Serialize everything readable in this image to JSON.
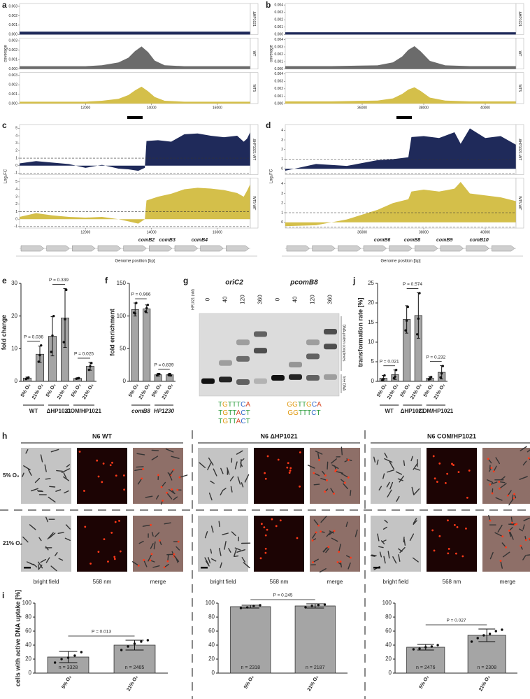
{
  "panel_labels": [
    "a",
    "b",
    "c",
    "d",
    "e",
    "f",
    "g",
    "h",
    "i",
    "j"
  ],
  "chart_data": [
    {
      "type": "area",
      "ylabel": "coverage",
      "x": [
        10000,
        11000,
        12000,
        12500,
        13000,
        13300,
        13500,
        13700,
        13900,
        14100,
        14400,
        15000,
        16000,
        17000
      ],
      "series": [
        {
          "name": "ΔHP1021",
          "color": "#1f2a5a",
          "values": [
            0.0003,
            0.0003,
            0.0003,
            0.0003,
            0.0003,
            0.0003,
            0.0003,
            0.0003,
            0.0003,
            0.0003,
            0.0003,
            0.0003,
            0.0003,
            0.0003
          ]
        },
        {
          "name": "WT",
          "color": "#6b6b6b",
          "values": [
            0.0003,
            0.0003,
            0.0003,
            0.0004,
            0.0007,
            0.0012,
            0.0019,
            0.0024,
            0.0018,
            0.0009,
            0.0004,
            0.0003,
            0.0003,
            0.0003
          ]
        },
        {
          "name": "WT5",
          "color": "#d4bf4a",
          "values": [
            0.0002,
            0.0002,
            0.0002,
            0.0003,
            0.0005,
            0.0009,
            0.0014,
            0.0018,
            0.0013,
            0.0007,
            0.0003,
            0.0002,
            0.0002,
            0.0002
          ]
        }
      ],
      "xlim": [
        10000,
        17000
      ],
      "xticks": [
        12000,
        14000,
        16000
      ],
      "ylim": [
        0,
        0.0033
      ],
      "yticks": [
        {
          "value": 0,
          "label": "0.000"
        },
        {
          "value": 0.001,
          "label": "0.001"
        },
        {
          "value": 0.002,
          "label": "0.002"
        },
        {
          "value": 0.003,
          "label": "0.003"
        }
      ]
    },
    {
      "type": "area",
      "ylabel": "coverage",
      "x": [
        33500,
        35000,
        36500,
        37000,
        37300,
        37500,
        37700,
        37900,
        38200,
        38700,
        39500,
        40500,
        41000
      ],
      "series": [
        {
          "name": "ΔHP1021",
          "color": "#1f2a5a",
          "values": [
            0.0003,
            0.0003,
            0.0003,
            0.0003,
            0.0003,
            0.0003,
            0.0003,
            0.0003,
            0.0003,
            0.0003,
            0.0003,
            0.0003,
            0.0003
          ]
        },
        {
          "name": "WT",
          "color": "#6b6b6b",
          "values": [
            0.0004,
            0.0004,
            0.0005,
            0.0009,
            0.0017,
            0.0026,
            0.0031,
            0.0024,
            0.0011,
            0.0005,
            0.0004,
            0.0004,
            0.0004
          ]
        },
        {
          "name": "WT5",
          "color": "#d4bf4a",
          "values": [
            0.0003,
            0.0003,
            0.0004,
            0.0007,
            0.0013,
            0.0019,
            0.0022,
            0.0017,
            0.0008,
            0.0004,
            0.0003,
            0.0003,
            0.0003
          ]
        }
      ],
      "xlim": [
        33500,
        41000
      ],
      "xticks": [
        36000,
        38000,
        40000
      ],
      "ylim": [
        0,
        0.0042
      ],
      "yticks": [
        {
          "value": 0,
          "label": "0.000"
        },
        {
          "value": 0.001,
          "label": "0.001"
        },
        {
          "value": 0.002,
          "label": "0.002"
        },
        {
          "value": 0.003,
          "label": "0.003"
        },
        {
          "value": 0.004,
          "label": "0.004"
        }
      ]
    },
    {
      "type": "area",
      "ylabel": "Log₂FC",
      "xlabel": "Genome position [bp]",
      "x": [
        10000,
        10500,
        11000,
        11500,
        12000,
        12500,
        13000,
        13300,
        13600,
        13800,
        13850,
        14200,
        14600,
        15000,
        15400,
        15800,
        16200,
        16600,
        16800,
        16900,
        17000
      ],
      "series": [
        {
          "name": "ΔHP1021-WT",
          "color": "#1f2a5a",
          "values": [
            0.3,
            0.6,
            0.4,
            0.2,
            -0.3,
            0.1,
            -0.4,
            -0.5,
            -0.7,
            -0.3,
            3.3,
            3.4,
            3.2,
            4.2,
            4.3,
            4.0,
            3.8,
            4.0,
            3.2,
            3.6,
            4.5
          ]
        },
        {
          "name": "WT5-WT",
          "color": "#d4bf4a",
          "values": [
            0.3,
            0.8,
            0.5,
            0.3,
            0.2,
            0.3,
            0.0,
            -0.3,
            -0.6,
            0.0,
            2.5,
            3.0,
            3.4,
            4.0,
            4.2,
            4.1,
            3.9,
            3.5,
            3.0,
            3.8,
            4.7
          ]
        }
      ],
      "xlim": [
        10000,
        17000
      ],
      "xticks": [
        12000,
        14000,
        16000
      ],
      "ylim": [
        -1.2,
        5.5
      ],
      "yticks": [
        -1,
        0,
        1,
        2,
        3,
        4,
        5
      ],
      "ref_lines": [
        1,
        -1
      ],
      "genes": [
        "comB2",
        "comB3",
        "comB4"
      ]
    },
    {
      "type": "area",
      "ylabel": "Log₂FC",
      "xlabel": "Genome position [bp]",
      "x": [
        33500,
        34500,
        35500,
        36000,
        36500,
        37000,
        37500,
        37600,
        38000,
        38500,
        39000,
        39200,
        39500,
        40000,
        40500,
        41000
      ],
      "series": [
        {
          "name": "ΔHP1021-WT",
          "color": "#1f2a5a",
          "values": [
            -0.2,
            0.5,
            0.3,
            0.6,
            0.9,
            1.0,
            1.2,
            3.3,
            3.4,
            3.2,
            3.8,
            2.6,
            4.2,
            3.2,
            3.4,
            2.5
          ]
        },
        {
          "name": "WT5-WT",
          "color": "#d4bf4a",
          "values": [
            -0.4,
            -0.3,
            0.3,
            0.8,
            1.3,
            2.0,
            2.4,
            3.2,
            3.4,
            3.2,
            3.5,
            4.2,
            3.0,
            2.8,
            2.6,
            2.2
          ]
        }
      ],
      "xlim": [
        33500,
        41000
      ],
      "xticks": [
        36000,
        38000,
        40000
      ],
      "ylim": [
        -0.6,
        4.6
      ],
      "yticks": [
        0,
        1,
        2,
        3,
        4
      ],
      "ref_lines": [
        1,
        -0.5
      ],
      "genes": [
        "comB6",
        "comB8",
        "comB9",
        "comB10"
      ]
    },
    {
      "type": "bar",
      "ylabel": "fold change",
      "color": "#a5a5a5",
      "categories": [
        "5% O₂",
        "21% O₂",
        "5% O₂",
        "21% O₂",
        "5% O₂",
        "21% O₂"
      ],
      "groups": [
        "WT",
        "ΔHP1021",
        "COM/HP1021"
      ],
      "values": [
        1,
        8.3,
        13.8,
        19.4,
        0.9,
        4.6
      ],
      "errors": [
        0.3,
        2.5,
        6,
        9,
        0.2,
        1.2
      ],
      "points": [
        [
          0.7,
          1,
          1.2
        ],
        [
          6,
          8,
          11
        ],
        [
          9,
          14,
          20
        ],
        [
          12,
          19,
          28
        ],
        [
          0.8,
          0.9,
          1
        ],
        [
          3.5,
          4.6,
          5.6
        ]
      ],
      "annotations": [
        "P = 0.036",
        "P = 0.339",
        "P = 0.025"
      ],
      "ylim": [
        0,
        30
      ],
      "yticks": [
        0,
        10,
        20,
        30
      ]
    },
    {
      "type": "bar",
      "ylabel": "fold enrichment",
      "color": "#a5a5a5",
      "categories": [
        "5% O₂",
        "21% O₂",
        "5% O₂",
        "21% O₂"
      ],
      "groups": [
        "comB8",
        "HP1230"
      ],
      "values": [
        110,
        111,
        10,
        10
      ],
      "errors": [
        10,
        6,
        2,
        2
      ],
      "points": [
        [
          105,
          104,
          120
        ],
        [
          107,
          112,
          117
        ],
        [
          9,
          11,
          11
        ],
        [
          10,
          11,
          9
        ]
      ],
      "annotations": [
        "P = 0.966",
        "P = 0.839"
      ],
      "ylim": [
        0,
        150
      ],
      "yticks": [
        0,
        50,
        100,
        150
      ]
    },
    {
      "type": "bar",
      "ylabel": "transformation rate [%]",
      "color": "#a5a5a5",
      "categories": [
        "5% O₂",
        "21% O₂",
        "5% O₂",
        "21% O₂",
        "5% O₂",
        "21% O₂"
      ],
      "groups": [
        "WT",
        "ΔHP1021",
        "COM/HP1021"
      ],
      "values": [
        0.8,
        1.7,
        15.8,
        16.8,
        0.8,
        2.3
      ],
      "errors": [
        0.7,
        1.2,
        3.5,
        5.8,
        0.4,
        1.7
      ],
      "points": [
        [
          0.3,
          0.6,
          1.5
        ],
        [
          0.8,
          1.2,
          2.9
        ],
        [
          13,
          15.5,
          19
        ],
        [
          12,
          16,
          22.5
        ],
        [
          0.5,
          0.8,
          1.1
        ],
        [
          1,
          2,
          3.9
        ]
      ],
      "annotations": [
        "P = 0.021",
        "P = 0.574",
        "P = 0.232"
      ],
      "ylim": [
        0,
        25
      ],
      "yticks": [
        0,
        5,
        10,
        15,
        20,
        25
      ]
    },
    {
      "type": "bar",
      "ylabel": "cells with active DNA uptake [%]",
      "color": "#a5a5a5",
      "categories": [
        "5% O₂",
        "21% O₂"
      ],
      "values": [
        23,
        40
      ],
      "errors": [
        8,
        7
      ],
      "points": [
        [
          15,
          20,
          22,
          25,
          30
        ],
        [
          33,
          38,
          42,
          45,
          47
        ]
      ],
      "n_labels": [
        "n = 3328",
        "n = 2465"
      ],
      "annotations": [
        "P = 0.013"
      ],
      "ylim": [
        0,
        100
      ],
      "yticks": [
        0,
        20,
        40,
        60,
        80,
        100
      ]
    },
    {
      "type": "bar",
      "color": "#a5a5a5",
      "categories": [
        "5% O₂",
        "21% O₂"
      ],
      "values": [
        95,
        96
      ],
      "errors": [
        2,
        3
      ],
      "points": [
        [
          93,
          94,
          96,
          97
        ],
        [
          94,
          96,
          97,
          98
        ]
      ],
      "n_labels": [
        "n = 2318",
        "n = 2187"
      ],
      "annotations": [
        "P = 0.245"
      ],
      "ylim": [
        0,
        100
      ],
      "yticks": [
        0,
        20,
        40,
        60,
        80,
        100
      ]
    },
    {
      "type": "bar",
      "color": "#a5a5a5",
      "categories": [
        "5% O₂",
        "21% O₂"
      ],
      "values": [
        37,
        54
      ],
      "errors": [
        4,
        9
      ],
      "points": [
        [
          34,
          35,
          37,
          38,
          40
        ],
        [
          45,
          50,
          54,
          56,
          60,
          62
        ]
      ],
      "n_labels": [
        "n = 2476",
        "n = 2308"
      ],
      "annotations": [
        "P = 0.027"
      ],
      "ylim": [
        0,
        100
      ],
      "yticks": [
        0,
        20,
        40,
        60,
        80,
        100
      ]
    }
  ],
  "gel": {
    "targets": [
      "oriC2",
      "pcomB8"
    ],
    "concentration_label": "HP1021 (nM)",
    "lanes": [
      [
        "0",
        "40",
        "120",
        "360"
      ],
      [
        "0",
        "40",
        "120",
        "360"
      ]
    ],
    "band_labels": [
      "DNA-protein complexes",
      "free DNA"
    ],
    "motifs": [
      [
        "TGTTTCA",
        "TGTTACT",
        "TGTTACT"
      ],
      [
        "GGTTGCA",
        "GGTTTCT"
      ]
    ]
  },
  "microscopy": {
    "strains": [
      "N6 WT",
      "N6 ΔHP1021",
      "N6 COM/HP1021"
    ],
    "conditions": [
      "5% O₂",
      "21% O₂"
    ],
    "channels": [
      "bright field",
      "568 nm",
      "merge"
    ]
  }
}
